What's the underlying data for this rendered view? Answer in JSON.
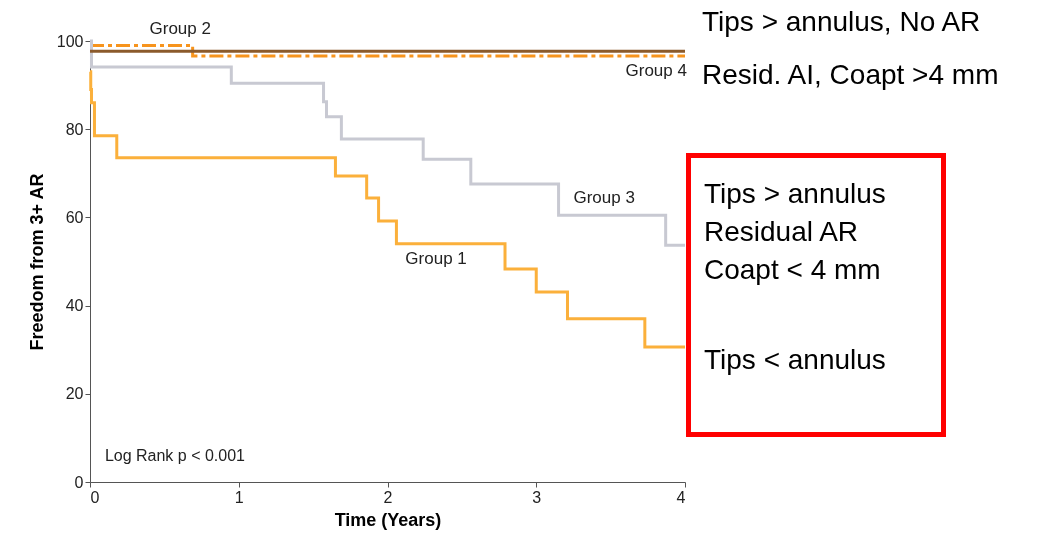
{
  "chart_data": {
    "type": "step",
    "xlabel": "Time (Years)",
    "ylabel": "Freedom from 3+ AR",
    "xlim": [
      0,
      4
    ],
    "xticks": [
      0,
      1,
      2,
      3,
      4
    ],
    "ylim": [
      0,
      100
    ],
    "yticks": [
      0,
      20,
      40,
      60,
      80,
      100
    ],
    "grid": false,
    "legend": false,
    "marker": "none",
    "series": [
      {
        "name": "Group 1",
        "color": "#fbb03b",
        "line_style": "solid",
        "x": [
          0,
          0.005,
          0.01,
          0.03,
          0.18,
          1.65,
          1.86,
          1.94,
          2.06,
          2.79,
          3.0,
          3.21,
          3.73,
          4
        ],
        "values": [
          93,
          89,
          86,
          78.5,
          73.5,
          69.4,
          64.4,
          59.2,
          54,
          48.3,
          43.1,
          37,
          30.6,
          30.6
        ]
      },
      {
        "name": "Group 2",
        "color": "#f7941d",
        "line_style": "dashed",
        "x": [
          0,
          0.69,
          4
        ],
        "values": [
          99,
          96.6,
          96.6
        ]
      },
      {
        "name": "Group 3",
        "color": "#c8c9d2",
        "line_style": "solid",
        "x": [
          0,
          0.01,
          0.95,
          1.57,
          1.59,
          1.69,
          2.24,
          2.56,
          3.15,
          3.87,
          4
        ],
        "values": [
          100,
          94.1,
          90.4,
          86.2,
          82.8,
          77.8,
          73.2,
          67.6,
          60.5,
          53.7,
          53.7
        ]
      },
      {
        "name": "Group 4",
        "color": "#8b5a2b",
        "line_style": "solid",
        "x": [
          0,
          4
        ],
        "values": [
          97.7,
          97.7
        ]
      }
    ],
    "annotations": [
      "Log Rank p < 0.001",
      "Tips > annulus, No AR",
      "Resid. AI, Coapt >4 mm",
      "Tips > annulus",
      "Residual AR",
      "Coapt < 4 mm",
      "Tips < annulus"
    ]
  }
}
